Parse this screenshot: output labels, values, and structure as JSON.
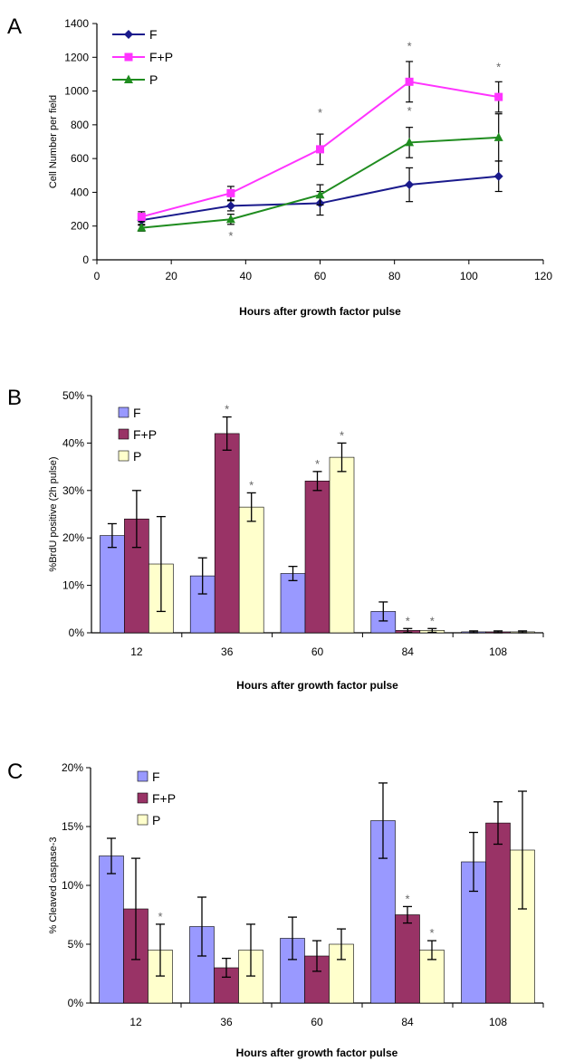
{
  "chart_data": [
    {
      "panel": "A",
      "type": "line",
      "xlabel": "Hours after growth factor pulse",
      "ylabel": "Cell Number per field",
      "xlim": [
        0,
        120
      ],
      "ylim": [
        0,
        1400
      ],
      "xticks": [
        0,
        20,
        40,
        60,
        80,
        100,
        120
      ],
      "yticks": [
        0,
        200,
        400,
        600,
        800,
        1000,
        1200,
        1400
      ],
      "grid": false,
      "legend_position": "top-left",
      "series": [
        {
          "name": "F",
          "color": "#1a1a8c",
          "marker": "diamond",
          "x": [
            12,
            36,
            60,
            84,
            108
          ],
          "values": [
            235,
            320,
            335,
            445,
            495
          ],
          "error": [
            30,
            30,
            70,
            100,
            90
          ]
        },
        {
          "name": "F+P",
          "color": "#ff33ff",
          "marker": "square",
          "x": [
            12,
            36,
            60,
            84,
            108
          ],
          "values": [
            255,
            395,
            655,
            1055,
            965
          ],
          "error": [
            30,
            40,
            90,
            120,
            90
          ]
        },
        {
          "name": "P",
          "color": "#1f8c1f",
          "marker": "triangle",
          "x": [
            12,
            36,
            60,
            84,
            108
          ],
          "values": [
            190,
            240,
            385,
            695,
            725
          ],
          "error": [
            20,
            30,
            60,
            90,
            140
          ]
        }
      ],
      "annotations": [
        {
          "text": "*",
          "x": 36,
          "y": 150
        },
        {
          "text": "*",
          "x": 60,
          "y": 880
        },
        {
          "text": "*",
          "x": 84,
          "y": 1275
        },
        {
          "text": "*",
          "x": 84,
          "y": 890
        },
        {
          "text": "*",
          "x": 108,
          "y": 1150
        }
      ]
    },
    {
      "panel": "B",
      "type": "bar",
      "xlabel": "Hours after growth factor pulse",
      "ylabel": "%BrdU positive (2h pulse)",
      "categories": [
        "12",
        "36",
        "60",
        "84",
        "108"
      ],
      "ylim": [
        0,
        50
      ],
      "yticks": [
        "0%",
        "10%",
        "20%",
        "30%",
        "40%",
        "50%"
      ],
      "grid": false,
      "legend_position": "top-left",
      "series": [
        {
          "name": "F",
          "color": "#9999ff",
          "values": [
            20.5,
            12,
            12.5,
            4.5,
            0.2
          ],
          "error": [
            2.5,
            3.8,
            1.5,
            2,
            0.2
          ]
        },
        {
          "name": "F+P",
          "color": "#993366",
          "values": [
            24,
            42,
            32,
            0.5,
            0.2
          ],
          "error": [
            6,
            3.5,
            2,
            0.4,
            0.2
          ]
        },
        {
          "name": "P",
          "color": "#ffffcc",
          "values": [
            14.5,
            26.5,
            37,
            0.5,
            0.2
          ],
          "error": [
            10,
            3,
            3,
            0.4,
            0.2
          ]
        }
      ],
      "annotations": [
        {
          "text": "*",
          "category": "36",
          "series": "F+P"
        },
        {
          "text": "*",
          "category": "36",
          "series": "P"
        },
        {
          "text": "*",
          "category": "60",
          "series": "F+P"
        },
        {
          "text": "*",
          "category": "60",
          "series": "P"
        },
        {
          "text": "*",
          "category": "84",
          "series": "F+P"
        },
        {
          "text": "*",
          "category": "84",
          "series": "P"
        }
      ]
    },
    {
      "panel": "C",
      "type": "bar",
      "xlabel": "Hours after growth factor pulse",
      "ylabel": "% Cleaved caspase-3",
      "categories": [
        "12",
        "36",
        "60",
        "84",
        "108"
      ],
      "ylim": [
        0,
        20
      ],
      "yticks": [
        "0%",
        "5%",
        "10%",
        "15%",
        "20%"
      ],
      "grid": false,
      "legend_position": "top-left",
      "series": [
        {
          "name": "F",
          "color": "#9999ff",
          "values": [
            12.5,
            6.5,
            5.5,
            15.5,
            12
          ],
          "error": [
            1.5,
            2.5,
            1.8,
            3.2,
            2.5
          ]
        },
        {
          "name": "F+P",
          "color": "#993366",
          "values": [
            8,
            3,
            4,
            7.5,
            15.3
          ],
          "error": [
            4.3,
            0.8,
            1.3,
            0.7,
            1.8
          ]
        },
        {
          "name": "P",
          "color": "#ffffcc",
          "values": [
            4.5,
            4.5,
            5,
            4.5,
            13
          ],
          "error": [
            2.2,
            2.2,
            1.3,
            0.8,
            5
          ]
        }
      ],
      "annotations": [
        {
          "text": "*",
          "category": "12",
          "series": "P"
        },
        {
          "text": "*",
          "category": "84",
          "series": "F+P"
        },
        {
          "text": "*",
          "category": "84",
          "series": "P"
        }
      ]
    }
  ]
}
